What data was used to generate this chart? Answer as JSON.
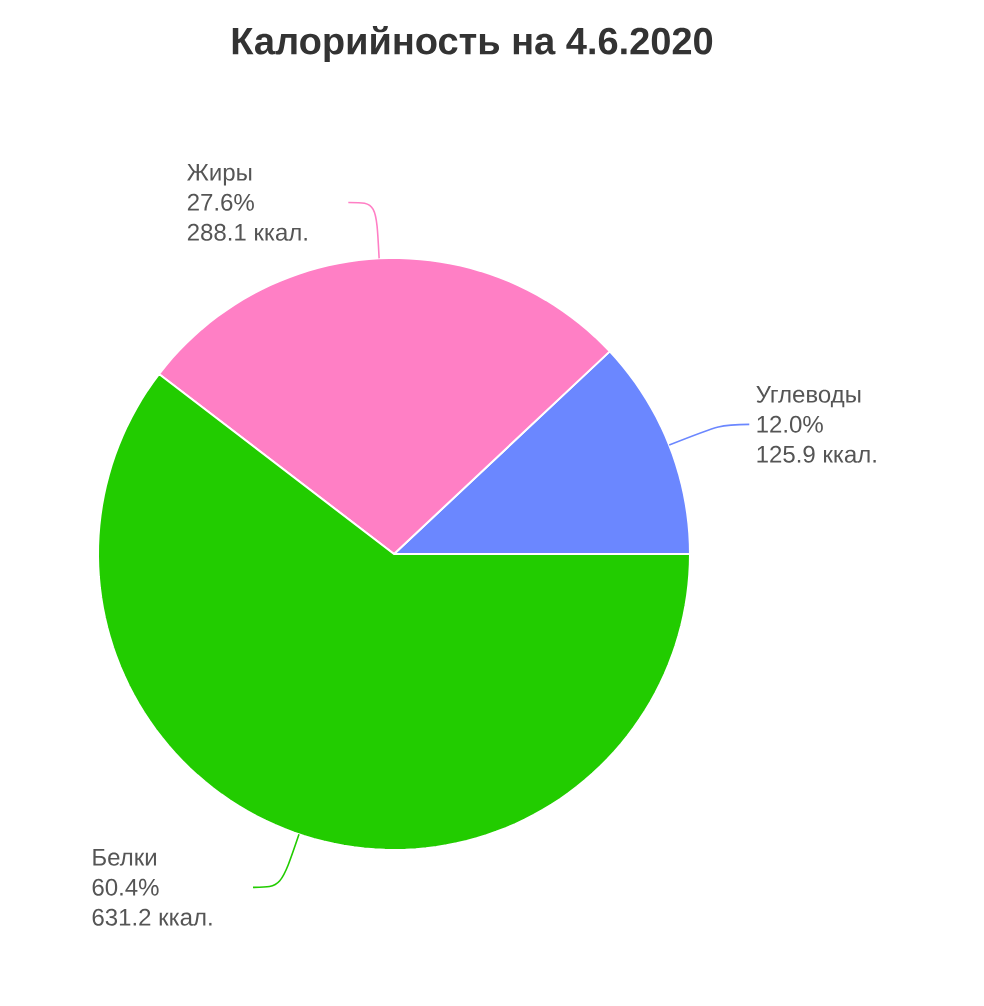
{
  "chart_data": {
    "type": "pie",
    "title": "Калорийность на 4.6.2020",
    "categories": [
      "Углеводы",
      "Жиры",
      "Белки"
    ],
    "values": [
      12.0,
      27.6,
      60.4
    ],
    "colors": [
      "#6b87ff",
      "#ff7fc5",
      "#22cc00"
    ],
    "value_labels": [
      "12.0%",
      "27.6%",
      "60.4%"
    ],
    "annotations": [
      "125.9 ккал.",
      "288.1 ккал.",
      "631.2 ккал."
    ],
    "legend": false
  }
}
